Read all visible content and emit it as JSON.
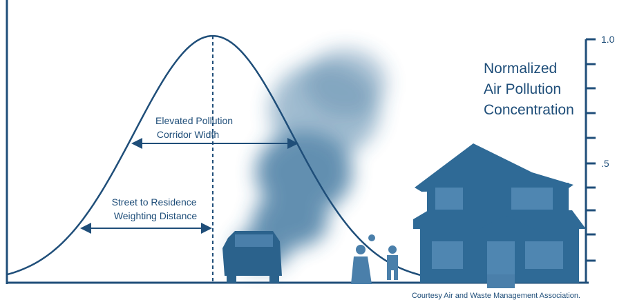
{
  "axis": {
    "title": [
      "Normalized",
      "Air Pollution",
      "Concentration"
    ],
    "tick_labels": [
      "1.0",
      ".5"
    ]
  },
  "annotations": [
    {
      "lines": [
        "Elevated Pollution",
        "Corridor Width"
      ]
    },
    {
      "lines": [
        "Street to Residence",
        "Weighting Distance"
      ]
    }
  ],
  "credit": "Courtesy Air and Waste Management Association."
}
